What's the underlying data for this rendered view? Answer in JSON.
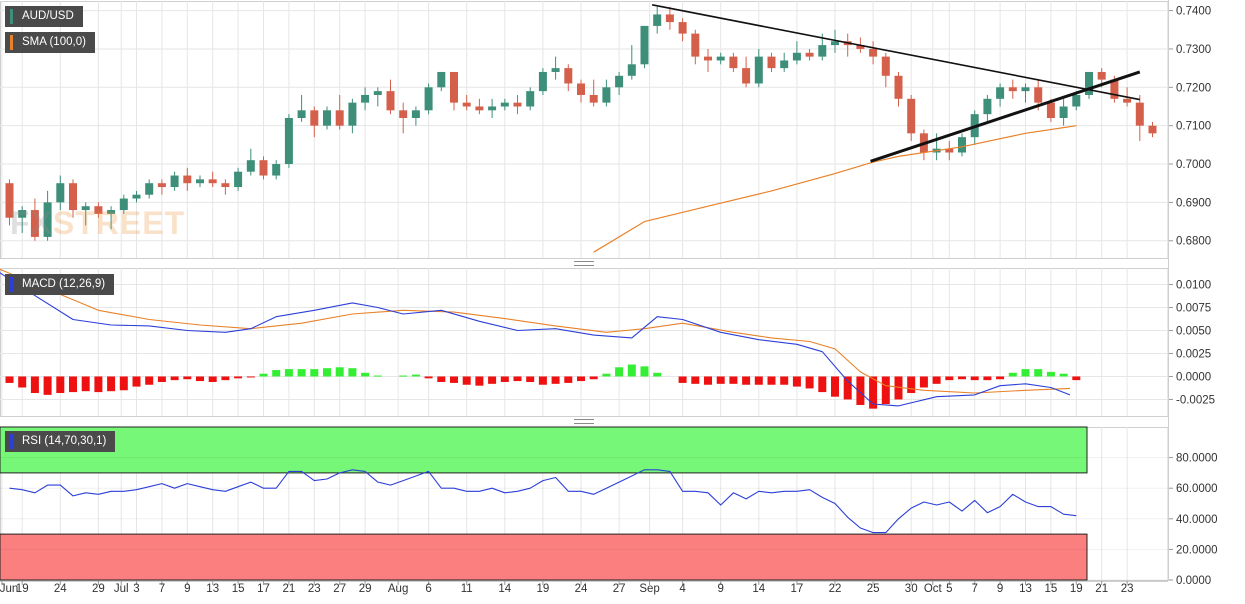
{
  "legends": {
    "price": "AUD/USD",
    "sma": "SMA (100,0)",
    "macd": "MACD (12,26,9)",
    "rsi": "RSI (14,70,30,1)"
  },
  "watermark": {
    "part1": "FX",
    "part2": "STREET"
  },
  "colors": {
    "bull": "#3d8f7a",
    "bear": "#d4604c",
    "sma": "#e8822a",
    "macd_line": "#2c3fd8",
    "signal_line": "#e8822a",
    "hist_positive": "#33ee33",
    "hist_negative": "#ee1111",
    "rsi_line": "#2c3fd8",
    "overbought_zone": "#77f777",
    "oversold_zone": "#fc7f7f",
    "trendline": "#111111",
    "grid": "#e6e6e6"
  },
  "x_axis": {
    "ticks": [
      {
        "label": "Jun",
        "i": -0.6
      },
      {
        "label": "19",
        "i": 1
      },
      {
        "label": "24",
        "i": 4
      },
      {
        "label": "29",
        "i": 7
      },
      {
        "label": "Jul",
        "i": 8.8
      },
      {
        "label": "3",
        "i": 10
      },
      {
        "label": "7",
        "i": 12
      },
      {
        "label": "9",
        "i": 14
      },
      {
        "label": "13",
        "i": 16
      },
      {
        "label": "15",
        "i": 18
      },
      {
        "label": "17",
        "i": 20
      },
      {
        "label": "21",
        "i": 22
      },
      {
        "label": "23",
        "i": 24
      },
      {
        "label": "27",
        "i": 26
      },
      {
        "label": "29",
        "i": 28
      },
      {
        "label": "Aug",
        "i": 30.6
      },
      {
        "label": "6",
        "i": 33
      },
      {
        "label": "11",
        "i": 36
      },
      {
        "label": "14",
        "i": 39
      },
      {
        "label": "19",
        "i": 42
      },
      {
        "label": "24",
        "i": 45
      },
      {
        "label": "27",
        "i": 48
      },
      {
        "label": "Sep",
        "i": 50.4
      },
      {
        "label": "4",
        "i": 53
      },
      {
        "label": "9",
        "i": 56
      },
      {
        "label": "14",
        "i": 59
      },
      {
        "label": "17",
        "i": 62
      },
      {
        "label": "22",
        "i": 65
      },
      {
        "label": "25",
        "i": 68
      },
      {
        "label": "30",
        "i": 71
      },
      {
        "label": "Oct",
        "i": 72.7
      },
      {
        "label": "5",
        "i": 74
      },
      {
        "label": "7",
        "i": 76
      },
      {
        "label": "9",
        "i": 78
      },
      {
        "label": "13",
        "i": 80
      },
      {
        "label": "15",
        "i": 82
      },
      {
        "label": "19",
        "i": 84
      },
      {
        "label": "21",
        "i": 86
      },
      {
        "label": "23",
        "i": 88
      }
    ]
  },
  "chart_data": [
    {
      "type": "candlestick",
      "name": "AUD/USD",
      "ylim": [
        0.6755,
        0.7425
      ],
      "y_ticks": [
        "0.7400",
        "0.7300",
        "0.7200",
        "0.7100",
        "0.7000",
        "0.6900",
        "0.6800"
      ],
      "y_tick_values": [
        0.74,
        0.73,
        0.72,
        0.71,
        0.7,
        0.69,
        0.68
      ],
      "ohlc": [
        [
          0.695,
          0.696,
          0.684,
          0.686
        ],
        [
          0.686,
          0.689,
          0.682,
          0.688
        ],
        [
          0.688,
          0.691,
          0.68,
          0.681
        ],
        [
          0.681,
          0.693,
          0.68,
          0.69
        ],
        [
          0.69,
          0.697,
          0.688,
          0.695
        ],
        [
          0.695,
          0.696,
          0.686,
          0.688
        ],
        [
          0.688,
          0.69,
          0.684,
          0.689
        ],
        [
          0.689,
          0.69,
          0.686,
          0.687
        ],
        [
          0.687,
          0.689,
          0.683,
          0.688
        ],
        [
          0.688,
          0.692,
          0.687,
          0.691
        ],
        [
          0.691,
          0.693,
          0.69,
          0.692
        ],
        [
          0.692,
          0.696,
          0.691,
          0.695
        ],
        [
          0.695,
          0.696,
          0.692,
          0.694
        ],
        [
          0.694,
          0.698,
          0.693,
          0.697
        ],
        [
          0.697,
          0.699,
          0.693,
          0.695
        ],
        [
          0.695,
          0.697,
          0.694,
          0.696
        ],
        [
          0.696,
          0.698,
          0.694,
          0.695
        ],
        [
          0.695,
          0.696,
          0.692,
          0.694
        ],
        [
          0.694,
          0.699,
          0.693,
          0.698
        ],
        [
          0.698,
          0.704,
          0.697,
          0.701
        ],
        [
          0.701,
          0.702,
          0.696,
          0.697
        ],
        [
          0.697,
          0.701,
          0.696,
          0.7
        ],
        [
          0.7,
          0.713,
          0.699,
          0.712
        ],
        [
          0.712,
          0.718,
          0.711,
          0.714
        ],
        [
          0.714,
          0.715,
          0.707,
          0.71
        ],
        [
          0.71,
          0.715,
          0.709,
          0.714
        ],
        [
          0.714,
          0.718,
          0.709,
          0.71
        ],
        [
          0.71,
          0.717,
          0.708,
          0.716
        ],
        [
          0.716,
          0.72,
          0.714,
          0.718
        ],
        [
          0.718,
          0.72,
          0.715,
          0.719
        ],
        [
          0.719,
          0.722,
          0.713,
          0.714
        ],
        [
          0.714,
          0.716,
          0.708,
          0.712
        ],
        [
          0.712,
          0.715,
          0.71,
          0.714
        ],
        [
          0.714,
          0.721,
          0.713,
          0.72
        ],
        [
          0.72,
          0.724,
          0.719,
          0.724
        ],
        [
          0.724,
          0.724,
          0.714,
          0.716
        ],
        [
          0.716,
          0.718,
          0.714,
          0.715
        ],
        [
          0.715,
          0.717,
          0.713,
          0.714
        ],
        [
          0.714,
          0.717,
          0.712,
          0.715
        ],
        [
          0.715,
          0.717,
          0.714,
          0.716
        ],
        [
          0.716,
          0.718,
          0.713,
          0.715
        ],
        [
          0.715,
          0.72,
          0.714,
          0.719
        ],
        [
          0.719,
          0.725,
          0.718,
          0.724
        ],
        [
          0.724,
          0.728,
          0.722,
          0.725
        ],
        [
          0.725,
          0.726,
          0.719,
          0.721
        ],
        [
          0.721,
          0.722,
          0.716,
          0.718
        ],
        [
          0.718,
          0.722,
          0.715,
          0.716
        ],
        [
          0.716,
          0.722,
          0.715,
          0.72
        ],
        [
          0.72,
          0.724,
          0.718,
          0.723
        ],
        [
          0.723,
          0.731,
          0.722,
          0.726
        ],
        [
          0.726,
          0.736,
          0.725,
          0.736
        ],
        [
          0.736,
          0.741,
          0.734,
          0.739
        ],
        [
          0.739,
          0.741,
          0.735,
          0.737
        ],
        [
          0.737,
          0.738,
          0.732,
          0.734
        ],
        [
          0.734,
          0.735,
          0.726,
          0.728
        ],
        [
          0.728,
          0.73,
          0.724,
          0.727
        ],
        [
          0.727,
          0.729,
          0.726,
          0.728
        ],
        [
          0.728,
          0.729,
          0.724,
          0.725
        ],
        [
          0.725,
          0.728,
          0.72,
          0.721
        ],
        [
          0.721,
          0.73,
          0.72,
          0.728
        ],
        [
          0.728,
          0.729,
          0.724,
          0.725
        ],
        [
          0.725,
          0.729,
          0.724,
          0.727
        ],
        [
          0.727,
          0.732,
          0.726,
          0.729
        ],
        [
          0.729,
          0.73,
          0.727,
          0.728
        ],
        [
          0.728,
          0.734,
          0.727,
          0.731
        ],
        [
          0.731,
          0.735,
          0.729,
          0.732
        ],
        [
          0.732,
          0.734,
          0.728,
          0.731
        ],
        [
          0.731,
          0.733,
          0.729,
          0.73
        ],
        [
          0.73,
          0.732,
          0.726,
          0.728
        ],
        [
          0.728,
          0.729,
          0.72,
          0.723
        ],
        [
          0.723,
          0.724,
          0.715,
          0.717
        ],
        [
          0.717,
          0.718,
          0.706,
          0.708
        ],
        [
          0.708,
          0.709,
          0.701,
          0.703
        ],
        [
          0.703,
          0.708,
          0.701,
          0.704
        ],
        [
          0.704,
          0.706,
          0.701,
          0.703
        ],
        [
          0.703,
          0.708,
          0.702,
          0.707
        ],
        [
          0.707,
          0.714,
          0.705,
          0.713
        ],
        [
          0.713,
          0.718,
          0.711,
          0.717
        ],
        [
          0.717,
          0.721,
          0.715,
          0.72
        ],
        [
          0.72,
          0.722,
          0.717,
          0.719
        ],
        [
          0.719,
          0.721,
          0.716,
          0.72
        ],
        [
          0.72,
          0.722,
          0.714,
          0.716
        ],
        [
          0.716,
          0.717,
          0.711,
          0.712
        ],
        [
          0.712,
          0.717,
          0.71,
          0.715
        ],
        [
          0.715,
          0.719,
          0.714,
          0.718
        ],
        [
          0.718,
          0.724,
          0.717,
          0.724
        ],
        [
          0.724,
          0.725,
          0.72,
          0.722
        ],
        [
          0.722,
          0.723,
          0.716,
          0.717
        ],
        [
          0.717,
          0.72,
          0.715,
          0.716
        ],
        [
          0.716,
          0.718,
          0.706,
          0.71
        ],
        [
          0.71,
          0.711,
          0.707,
          0.708
        ]
      ],
      "sma_100": {
        "i": [
          46,
          50,
          55,
          60,
          65,
          68,
          70,
          75,
          80,
          84
        ],
        "value": [
          0.677,
          0.685,
          0.689,
          0.693,
          0.6975,
          0.7005,
          0.702,
          0.7045,
          0.708,
          0.71
        ]
      },
      "trendlines": [
        {
          "from": {
            "i": 50.6,
            "value": 0.7415
          },
          "to": {
            "i": 89,
            "value": 0.7168
          },
          "weight": "thin"
        },
        {
          "from": {
            "i": 67.8,
            "value": 0.7007
          },
          "to": {
            "i": 89,
            "value": 0.724
          },
          "weight": "thick"
        }
      ]
    },
    {
      "type": "macd",
      "name": "MACD (12,26,9)",
      "ylim": [
        -0.0043,
        0.0118
      ],
      "y_ticks": [
        "0.0100",
        "0.0075",
        "0.0050",
        "0.0025",
        "0.0000",
        "-0.0025"
      ],
      "y_tick_values": [
        0.01,
        0.0075,
        0.005,
        0.0025,
        0.0,
        -0.0025
      ],
      "macd": {
        "i": [
          -1,
          2,
          5,
          8,
          11,
          14,
          17,
          19,
          21,
          24,
          27,
          29,
          31,
          34,
          37,
          40,
          43,
          46,
          49,
          51,
          53,
          56,
          59,
          62,
          64,
          66,
          68,
          70,
          73,
          76,
          78,
          80,
          82,
          83.5
        ],
        "value": [
          0.0115,
          0.0088,
          0.0062,
          0.0056,
          0.0055,
          0.005,
          0.0048,
          0.0052,
          0.0065,
          0.0072,
          0.008,
          0.0075,
          0.0068,
          0.0072,
          0.006,
          0.005,
          0.0052,
          0.0045,
          0.0042,
          0.0065,
          0.0062,
          0.0048,
          0.004,
          0.0035,
          0.0027,
          -0.0005,
          -0.003,
          -0.0032,
          -0.0022,
          -0.002,
          -0.001,
          -0.0008,
          -0.0012,
          -0.002
        ]
      },
      "signal": {
        "i": [
          -1,
          3,
          7,
          11,
          15,
          19,
          23,
          27,
          31,
          35,
          39,
          43,
          47,
          50,
          53,
          57,
          60,
          63,
          65,
          67,
          69,
          72,
          76,
          80,
          83.5
        ],
        "value": [
          0.0118,
          0.0095,
          0.0072,
          0.0062,
          0.0056,
          0.0052,
          0.0058,
          0.0068,
          0.0072,
          0.007,
          0.0063,
          0.0055,
          0.0048,
          0.0052,
          0.0058,
          0.0048,
          0.0042,
          0.0038,
          0.003,
          0.0005,
          -0.001,
          -0.0015,
          -0.0018,
          -0.0015,
          -0.0013
        ]
      },
      "histogram": [
        -0.0007,
        -0.0012,
        -0.0018,
        -0.002,
        -0.0018,
        -0.0017,
        -0.0016,
        -0.0017,
        -0.0016,
        -0.0015,
        -0.0011,
        -0.0009,
        -0.0006,
        -0.0004,
        -0.0003,
        -0.0005,
        -0.0006,
        -0.0004,
        -0.0002,
        -0.0001,
        0.0003,
        0.0007,
        0.0008,
        0.0008,
        0.0008,
        0.0009,
        0.001,
        0.0009,
        0.0004,
        0.0001,
        0.0,
        0.0001,
        0.0002,
        -0.0002,
        -0.0006,
        -0.0007,
        -0.0009,
        -0.001,
        -0.0008,
        -0.0006,
        -0.0005,
        -0.0006,
        -0.0009,
        -0.0008,
        -0.0007,
        -0.0005,
        -0.0003,
        0.0003,
        0.001,
        0.0013,
        0.0011,
        0.0004,
        0.0,
        -0.0007,
        -0.0008,
        -0.0009,
        -0.0008,
        -0.0008,
        -0.0009,
        -0.0009,
        -0.0009,
        -0.0009,
        -0.0011,
        -0.0013,
        -0.0017,
        -0.0022,
        -0.0025,
        -0.0031,
        -0.0035,
        -0.003,
        -0.0025,
        -0.0018,
        -0.0012,
        -0.0008,
        -0.0004,
        -0.0003,
        -0.0004,
        -0.0004,
        -0.0003,
        0.0004,
        0.0008,
        0.0008,
        0.0005,
        0.0003,
        -0.0004
      ]
    },
    {
      "type": "rsi",
      "name": "RSI (14,70,30,1)",
      "ylim": [
        0,
        100
      ],
      "y_ticks": [
        "80.0000",
        "60.0000",
        "40.0000",
        "20.0000",
        "0.0000"
      ],
      "y_tick_values": [
        80,
        60,
        40,
        20,
        0
      ],
      "overbought": 70,
      "oversold": 30,
      "values": [
        60,
        59,
        57,
        62,
        62,
        55,
        57,
        56,
        58,
        58,
        59,
        61,
        63,
        60,
        63,
        61,
        59,
        58,
        61,
        64,
        60,
        60,
        71,
        71,
        65,
        66,
        70,
        72,
        71,
        64,
        62,
        65,
        68,
        71,
        60,
        60,
        58,
        58,
        60,
        57,
        58,
        60,
        65,
        67,
        58,
        58,
        56,
        60,
        64,
        68,
        72,
        72,
        71,
        58,
        58,
        57,
        49,
        57,
        53,
        58,
        57,
        58,
        58,
        59,
        54,
        50,
        41,
        34,
        31,
        31,
        40,
        47,
        51,
        49,
        51,
        45,
        52,
        44,
        48,
        56,
        51,
        48,
        48,
        43,
        42
      ]
    }
  ]
}
